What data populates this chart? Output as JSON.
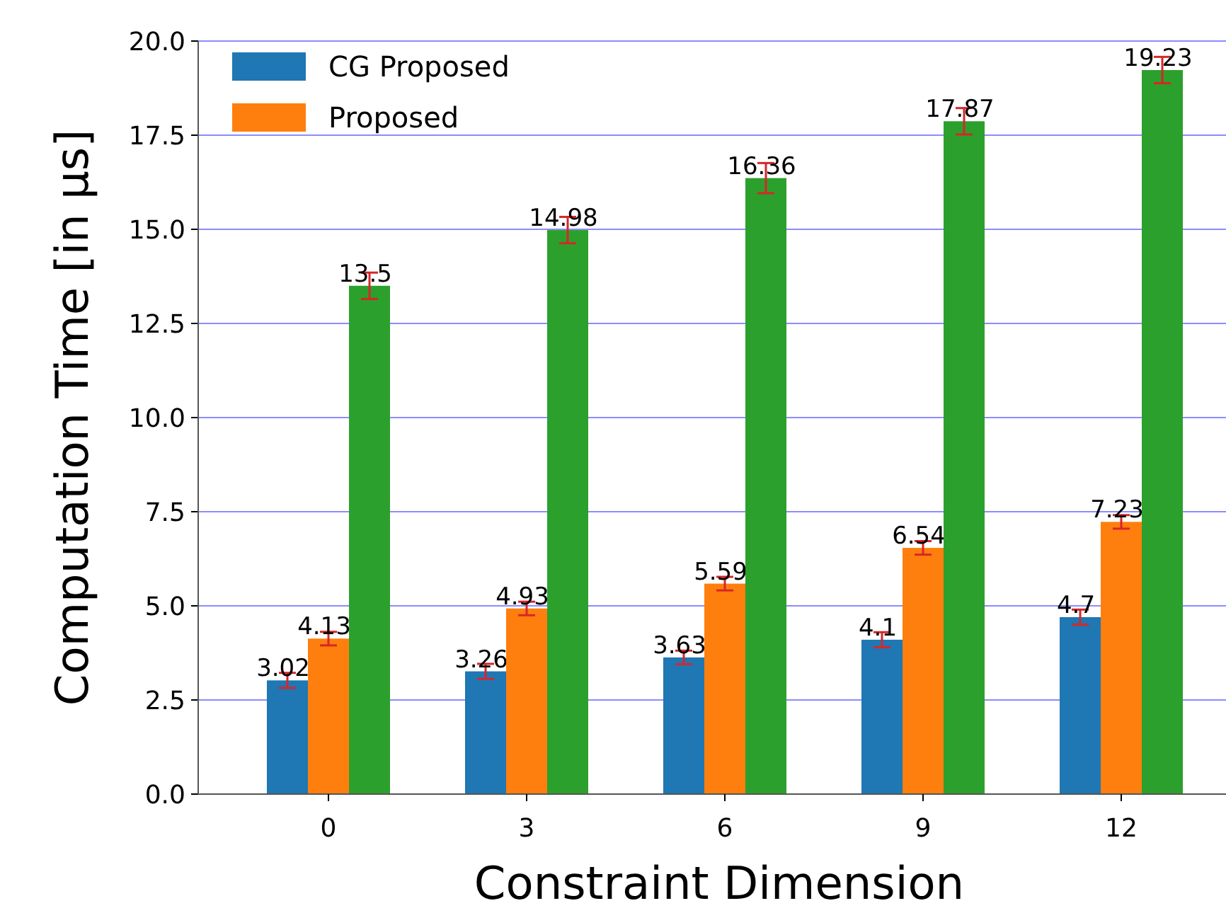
{
  "chart_data": {
    "type": "bar",
    "xlabel": "Constraint Dimension",
    "ylabel": "Computation Time [in μs]",
    "categories": [
      "0",
      "3",
      "6",
      "9",
      "12"
    ],
    "series": [
      {
        "name": "CG Proposed",
        "color": "#1f77b4",
        "values": [
          3.02,
          3.26,
          3.63,
          4.1,
          4.7
        ],
        "errors": [
          0.2,
          0.2,
          0.18,
          0.2,
          0.2
        ]
      },
      {
        "name": "Proposed",
        "color": "#ff7f0e",
        "values": [
          4.13,
          4.93,
          5.59,
          6.54,
          7.23
        ],
        "errors": [
          0.18,
          0.18,
          0.18,
          0.18,
          0.18
        ]
      },
      {
        "color": "#2ca02c",
        "values": [
          13.5,
          14.98,
          16.36,
          17.87,
          19.23
        ],
        "errors": [
          0.35,
          0.35,
          0.4,
          0.35,
          0.35
        ]
      }
    ],
    "ylim": [
      0,
      20
    ],
    "yticks": [
      {
        "value": 0,
        "label": "0.0"
      },
      {
        "value": 2.5,
        "label": "2.5"
      },
      {
        "value": 5,
        "label": "5.0"
      },
      {
        "value": 7.5,
        "label": "7.5"
      },
      {
        "value": 10,
        "label": "10.0"
      },
      {
        "value": 12.5,
        "label": "12.5"
      },
      {
        "value": 15,
        "label": "15.0"
      },
      {
        "value": 17.5,
        "label": "17.5"
      },
      {
        "value": 20,
        "label": "20.0"
      }
    ],
    "grid": "y",
    "legend": "top left",
    "data_labels": true
  }
}
